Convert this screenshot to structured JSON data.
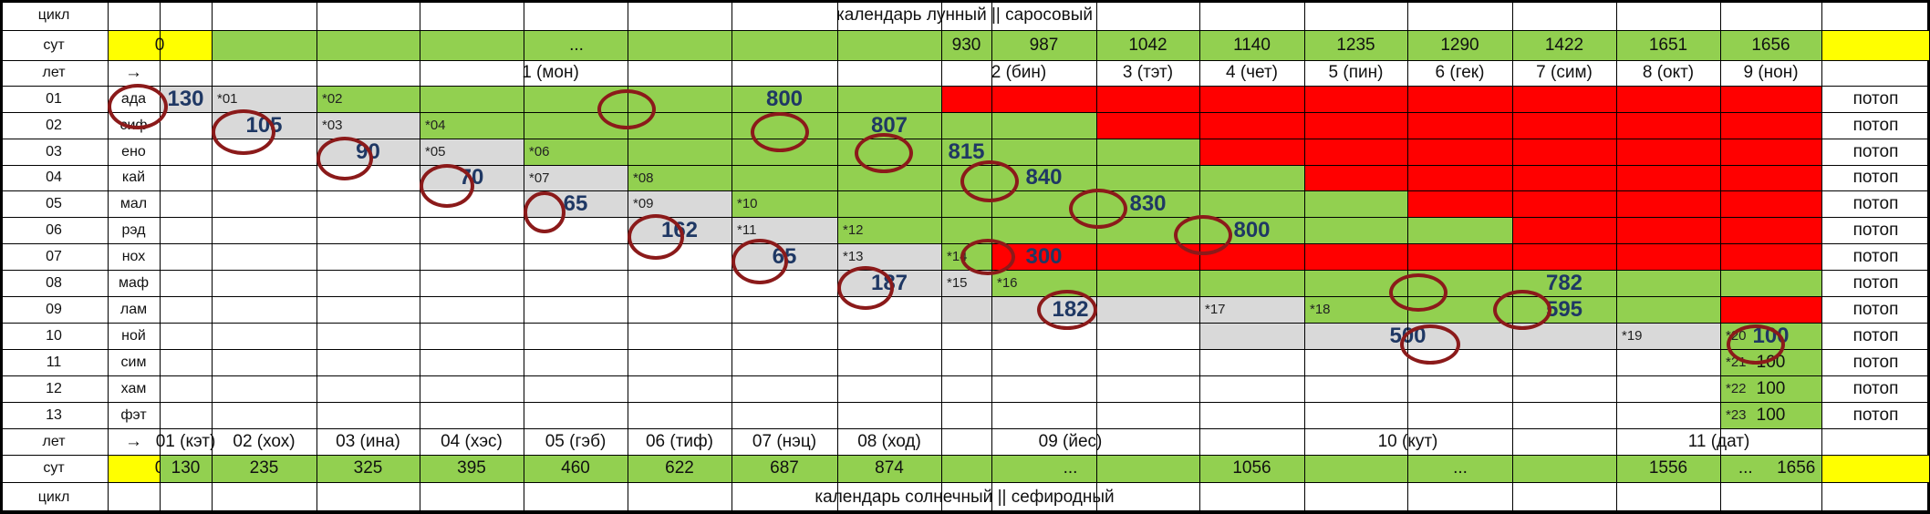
{
  "header": {
    "cycle_label": "цикл",
    "title": "календарь лунный || саросовый",
    "sut_label": "сут",
    "zero": "0",
    "ellipsis": "...",
    "sut_values": [
      "930",
      "987",
      "1042",
      "1140",
      "1235",
      "1290",
      "1422",
      "1651",
      "1656"
    ],
    "let_label": "лет",
    "arrow": "→",
    "month_labels": [
      "1 (мон)",
      "2 (бин)",
      "3 (тэт)",
      "4 (чет)",
      "5 (пин)",
      "6 (гек)",
      "7 (сим)",
      "8 (окт)",
      "9 (нон)"
    ]
  },
  "rows": [
    {
      "num": "01",
      "name": "ада",
      "value": "800",
      "start": "130",
      "stars": [
        "*01",
        "*02"
      ],
      "end": "потоп"
    },
    {
      "num": "02",
      "name": "сиф",
      "value": "807",
      "start": "105",
      "stars": [
        "*03",
        "*04"
      ],
      "end": "потоп"
    },
    {
      "num": "03",
      "name": "ено",
      "value": "815",
      "start": "90",
      "stars": [
        "*05",
        "*06"
      ],
      "end": "потоп"
    },
    {
      "num": "04",
      "name": "кай",
      "value": "840",
      "start": "70",
      "stars": [
        "*07",
        "*08"
      ],
      "end": "потоп"
    },
    {
      "num": "05",
      "name": "мал",
      "value": "830",
      "start": "65",
      "stars": [
        "*09",
        "*10"
      ],
      "end": "потоп"
    },
    {
      "num": "06",
      "name": "рэд",
      "value": "800",
      "start": "162",
      "stars": [
        "*11",
        "*12"
      ],
      "end": "потоп"
    },
    {
      "num": "07",
      "name": "нох",
      "value": "300",
      "start": "65",
      "stars": [
        "*13",
        "*14"
      ],
      "end": "потоп"
    },
    {
      "num": "08",
      "name": "маф",
      "value": "782",
      "start": "187",
      "stars": [
        "*15",
        "*16"
      ],
      "end": "потоп"
    },
    {
      "num": "09",
      "name": "лам",
      "value": "595",
      "start": "182",
      "stars": [
        "*17",
        "*18"
      ],
      "end": "потоп"
    },
    {
      "num": "10",
      "name": "ной",
      "value": "100",
      "start": "500",
      "stars": [
        "*19",
        "*20"
      ],
      "end": "потоп"
    },
    {
      "num": "11",
      "name": "сим",
      "value": "100",
      "start": "",
      "stars": [
        "*21"
      ],
      "end": "потоп"
    },
    {
      "num": "12",
      "name": "хам",
      "value": "100",
      "start": "",
      "stars": [
        "*22"
      ],
      "end": "потоп"
    },
    {
      "num": "13",
      "name": "фэт",
      "value": "100",
      "start": "",
      "stars": [
        "*23"
      ],
      "end": "потоп"
    }
  ],
  "footer": {
    "let_label": "лет",
    "arrow": "→",
    "year_labels": [
      "01 (кэт)",
      "02 (хох)",
      "03 (ина)",
      "04 (хэс)",
      "05 (гэб)",
      "06 (тиф)",
      "07 (нэц)",
      "08 (ход)",
      "09 (йес)",
      "10 (кут)",
      "11 (дат)"
    ],
    "sut_label": "сут",
    "zero": "0",
    "sut_values": [
      "130",
      "235",
      "325",
      "395",
      "460",
      "622",
      "687",
      "874",
      "...",
      "1056",
      "...",
      "1556",
      "...",
      "1656"
    ],
    "cycle_label": "цикл",
    "title": "календарь солнечный || сефиродный"
  },
  "colors": {
    "green": "#92d050",
    "red": "#ff0000",
    "yellow": "#ffff00",
    "gray": "#d9d9d9",
    "ring": "#8b1a1a"
  }
}
